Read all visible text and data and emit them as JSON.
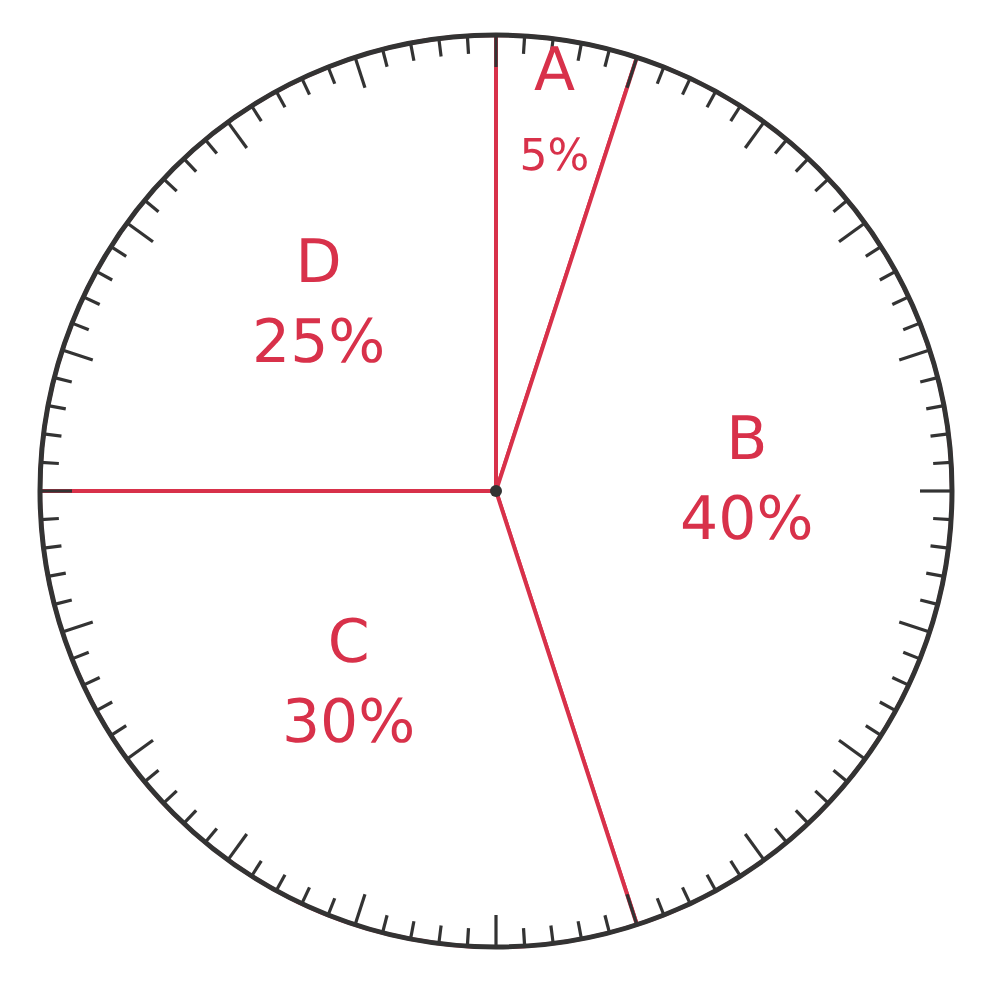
{
  "chart_data": {
    "type": "pie",
    "categories": [
      "A",
      "B",
      "C",
      "D"
    ],
    "values": [
      5,
      40,
      30,
      25
    ],
    "colors": [
      "#ffffff",
      "#ffffff",
      "#ffffff",
      "#ffffff"
    ],
    "value_labels": [
      "5%",
      "40%",
      "30%",
      "25%"
    ]
  }
}
